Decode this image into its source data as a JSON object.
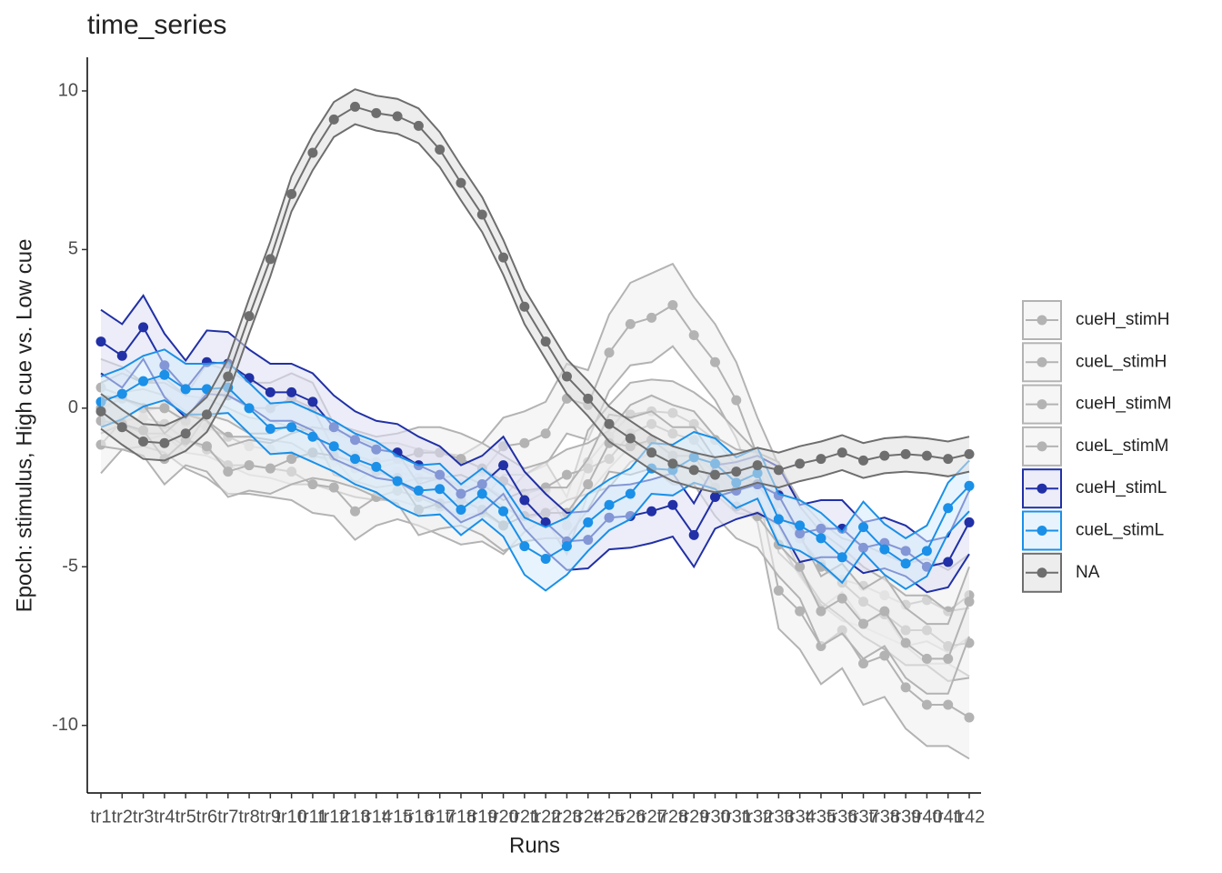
{
  "chart_data": {
    "type": "line",
    "title": "time_series",
    "x_label": "Runs",
    "y_label": "Epoch: stimulus, High cue vs. Low cue",
    "categories": [
      "tr1",
      "tr2",
      "tr3",
      "tr4",
      "tr5",
      "tr6",
      "tr7",
      "tr8",
      "tr9",
      "tr10",
      "tr11",
      "tr12",
      "tr13",
      "tr14",
      "tr15",
      "tr16",
      "tr17",
      "tr18",
      "tr19",
      "tr20",
      "tr21",
      "tr22",
      "tr23",
      "tr24",
      "tr25",
      "tr26",
      "tr27",
      "tr28",
      "tr29",
      "tr30",
      "tr31",
      "tr32",
      "tr33",
      "tr34",
      "tr35",
      "tr36",
      "tr37",
      "tr38",
      "tr39",
      "tr40",
      "tr41",
      "tr42"
    ],
    "ylim": [
      -12.13,
      11.06
    ],
    "yticks": [
      -10,
      -5,
      0,
      5,
      10
    ],
    "grid": false,
    "legend": "right",
    "series": [
      {
        "name": "cueH_stimH",
        "color": "#b3b3b3",
        "fill": "#eeeeee",
        "values": [
          0.65,
          0.4,
          -0.1,
          0.05,
          -0.5,
          -0.6,
          -0.9,
          -1.2,
          -1.3,
          -1.5,
          -1.5,
          -1.7,
          -1.9,
          -2.0,
          -2.0,
          -2.2,
          -2.3,
          -2.4,
          -2.0,
          -1.2,
          -1.1,
          -0.8,
          0.3,
          0.1,
          1.75,
          2.65,
          2.85,
          3.25,
          2.3,
          1.45,
          0.25,
          -1.5,
          -3.0,
          -4.1,
          -4.9,
          -5.4,
          -5.6,
          -5.9,
          -6.2,
          -6.05,
          -6.4,
          -5.9
        ],
        "errors": [
          0.9,
          0.9,
          0.9,
          0.9,
          0.9,
          0.9,
          0.9,
          0.9,
          0.9,
          0.9,
          0.9,
          0.9,
          0.9,
          0.9,
          0.9,
          0.9,
          0.9,
          0.9,
          0.9,
          0.9,
          1.0,
          1.0,
          1.1,
          1.1,
          1.2,
          1.3,
          1.4,
          1.3,
          1.2,
          1.2,
          1.2,
          1.2,
          1.2,
          1.2,
          1.3,
          1.3,
          1.3,
          1.3,
          1.3,
          1.3,
          1.3,
          1.3
        ]
      },
      {
        "name": "cueL_stimH",
        "color": "#b3b3b3",
        "fill": "#eeeeee",
        "values": [
          -1.15,
          -0.4,
          -0.3,
          -0.5,
          -1.0,
          -1.3,
          -1.8,
          -1.8,
          -1.9,
          -2.0,
          -2.4,
          -2.5,
          -3.25,
          -2.8,
          -2.6,
          -2.8,
          -3.1,
          -3.4,
          -3.3,
          -3.7,
          -3.0,
          -2.6,
          -3.7,
          -1.7,
          -0.9,
          -0.2,
          -0.1,
          -0.15,
          -0.5,
          -1.0,
          -1.8,
          -2.5,
          -5.75,
          -6.4,
          -7.5,
          -7.0,
          -8.05,
          -7.8,
          -8.8,
          -9.35,
          -9.35,
          -9.75
        ],
        "errors": [
          0.9,
          0.9,
          0.9,
          0.9,
          0.9,
          0.9,
          0.9,
          0.9,
          0.9,
          0.9,
          0.9,
          0.9,
          0.9,
          0.9,
          0.9,
          0.9,
          0.9,
          0.9,
          0.9,
          0.9,
          0.9,
          0.9,
          0.9,
          1.0,
          1.0,
          1.0,
          1.0,
          1.0,
          1.0,
          1.0,
          1.1,
          1.1,
          1.2,
          1.2,
          1.2,
          1.2,
          1.3,
          1.3,
          1.3,
          1.3,
          1.3,
          1.3
        ]
      },
      {
        "name": "cueH_stimM",
        "color": "#b3b3b3",
        "fill": "#eeeeee",
        "values": [
          0.0,
          0.3,
          0.0,
          0.0,
          -0.4,
          0.6,
          0.4,
          0.0,
          0.0,
          0.3,
          0.0,
          -1.3,
          -1.5,
          -1.7,
          -1.6,
          -1.4,
          -1.4,
          -1.6,
          -1.9,
          -2.3,
          -2.7,
          -2.5,
          -2.1,
          -1.9,
          -1.6,
          -0.8,
          -0.5,
          -0.8,
          -1.0,
          -1.8,
          -2.3,
          -2.4,
          -2.7,
          -4.1,
          -5.0,
          -5.5,
          -6.1,
          -6.5,
          -7.0,
          -7.0,
          -7.5,
          -7.4
        ],
        "errors": [
          0.8,
          0.8,
          0.8,
          0.8,
          0.8,
          0.8,
          0.8,
          0.8,
          0.8,
          0.8,
          0.8,
          0.8,
          0.8,
          0.8,
          0.8,
          0.8,
          0.8,
          0.8,
          0.8,
          0.8,
          0.8,
          0.8,
          0.8,
          0.8,
          0.9,
          0.9,
          0.9,
          0.9,
          0.9,
          0.9,
          1.0,
          1.0,
          1.0,
          1.0,
          1.1,
          1.1,
          1.1,
          1.1,
          1.1,
          1.1,
          1.1,
          1.1
        ]
      },
      {
        "name": "cueL_stimM",
        "color": "#b3b3b3",
        "fill": "#eeeeee",
        "values": [
          -0.4,
          -0.5,
          -0.7,
          -1.6,
          -1.0,
          -1.2,
          -2.0,
          -1.8,
          -1.9,
          -1.6,
          -1.4,
          -1.5,
          -1.7,
          -2.0,
          -2.2,
          -3.2,
          -3.0,
          -2.9,
          -3.2,
          -3.7,
          -3.4,
          -3.3,
          -3.3,
          -2.4,
          -1.1,
          -1.2,
          -1.0,
          -1.5,
          -1.5,
          -2.5,
          -3.1,
          -3.4,
          -4.3,
          -5.0,
          -6.4,
          -6.0,
          -6.8,
          -6.4,
          -7.4,
          -7.9,
          -7.9,
          -6.1
        ],
        "errors": [
          0.8,
          0.8,
          0.8,
          0.8,
          0.8,
          0.8,
          0.8,
          0.8,
          0.8,
          0.8,
          0.8,
          0.8,
          0.8,
          0.8,
          0.8,
          0.8,
          0.8,
          0.8,
          0.8,
          0.8,
          0.8,
          0.8,
          0.8,
          0.8,
          0.9,
          0.9,
          0.9,
          0.9,
          0.9,
          0.9,
          1.0,
          1.0,
          1.0,
          1.0,
          1.1,
          1.1,
          1.1,
          1.1,
          1.1,
          1.1,
          1.1,
          1.1
        ]
      },
      {
        "name": "cueH_stimL",
        "color": "#2130a6",
        "fill": "#dcdff3",
        "values": [
          2.1,
          1.65,
          2.55,
          1.35,
          0.6,
          1.45,
          1.4,
          0.95,
          0.5,
          0.5,
          0.2,
          -0.6,
          -1.0,
          -1.3,
          -1.4,
          -1.8,
          -2.1,
          -2.7,
          -2.4,
          -1.8,
          -2.9,
          -3.6,
          -4.2,
          -4.15,
          -3.45,
          -3.4,
          -3.25,
          -3.05,
          -4.0,
          -2.8,
          -2.6,
          -2.4,
          -2.75,
          -3.95,
          -3.8,
          -3.8,
          -4.4,
          -4.25,
          -4.5,
          -5.0,
          -4.85,
          -3.6
        ],
        "errors": [
          1.0,
          1.0,
          1.0,
          1.0,
          0.9,
          1.0,
          1.0,
          0.9,
          0.9,
          0.9,
          0.9,
          1.0,
          0.9,
          0.9,
          0.9,
          0.9,
          0.9,
          0.9,
          0.9,
          0.9,
          0.9,
          0.9,
          0.9,
          0.9,
          1.0,
          1.0,
          1.0,
          1.0,
          1.0,
          1.0,
          0.9,
          0.9,
          0.9,
          0.9,
          0.9,
          0.9,
          0.8,
          0.8,
          0.8,
          0.8,
          0.8,
          1.0
        ]
      },
      {
        "name": "cueL_stimL",
        "color": "#1a90e8",
        "fill": "#d6ebfb",
        "values": [
          0.2,
          0.45,
          0.85,
          1.05,
          0.6,
          0.6,
          0.65,
          0.0,
          -0.65,
          -0.6,
          -0.9,
          -1.2,
          -1.6,
          -1.85,
          -2.3,
          -2.6,
          -2.55,
          -3.2,
          -2.7,
          -3.25,
          -4.35,
          -4.75,
          -4.35,
          -3.6,
          -3.05,
          -2.7,
          -1.9,
          -1.95,
          -1.55,
          -1.75,
          -2.35,
          -2.05,
          -3.5,
          -3.7,
          -4.1,
          -4.7,
          -3.75,
          -4.45,
          -4.9,
          -4.5,
          -3.15,
          -2.45
        ],
        "errors": [
          0.8,
          0.8,
          0.8,
          0.8,
          0.8,
          0.8,
          0.8,
          0.8,
          0.8,
          0.8,
          0.8,
          0.8,
          0.8,
          0.8,
          0.8,
          0.8,
          0.8,
          0.8,
          0.8,
          0.8,
          0.9,
          1.0,
          0.9,
          0.9,
          0.8,
          0.8,
          0.8,
          0.8,
          0.8,
          0.8,
          0.8,
          0.8,
          0.8,
          0.8,
          0.8,
          0.8,
          0.8,
          0.8,
          0.8,
          0.8,
          0.8,
          0.8
        ]
      },
      {
        "name": "NA",
        "color": "#6e6e6e",
        "fill": "#dedede",
        "values": [
          -0.1,
          -0.6,
          -1.05,
          -1.1,
          -0.8,
          -0.2,
          1.0,
          2.9,
          4.7,
          6.75,
          8.05,
          9.1,
          9.5,
          9.3,
          9.2,
          8.9,
          8.15,
          7.1,
          6.1,
          4.75,
          3.2,
          2.1,
          1.0,
          0.3,
          -0.5,
          -0.95,
          -1.4,
          -1.75,
          -1.95,
          -2.1,
          -2.0,
          -1.8,
          -1.95,
          -1.75,
          -1.6,
          -1.4,
          -1.65,
          -1.5,
          -1.45,
          -1.5,
          -1.6,
          -1.45
        ],
        "errors": [
          0.55,
          0.55,
          0.55,
          0.55,
          0.55,
          0.55,
          0.55,
          0.55,
          0.55,
          0.55,
          0.55,
          0.55,
          0.55,
          0.55,
          0.55,
          0.55,
          0.55,
          0.55,
          0.55,
          0.55,
          0.55,
          0.55,
          0.55,
          0.55,
          0.55,
          0.55,
          0.55,
          0.55,
          0.55,
          0.55,
          0.55,
          0.55,
          0.55,
          0.55,
          0.55,
          0.55,
          0.55,
          0.55,
          0.55,
          0.55,
          0.55,
          0.55
        ]
      }
    ]
  }
}
